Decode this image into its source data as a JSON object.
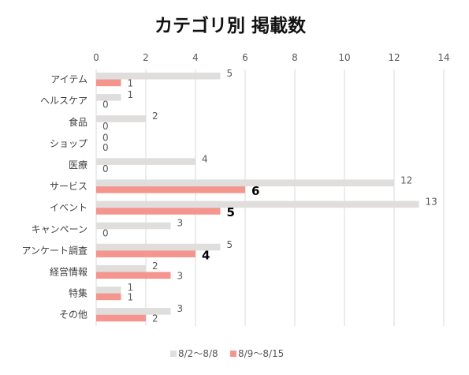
{
  "chart_data": {
    "type": "bar",
    "orientation": "horizontal",
    "title": "カテゴリ別 掲載数",
    "categories": [
      "アイテム",
      "ヘルスケア",
      "食品",
      "ショップ",
      "医療",
      "サービス",
      "イベント",
      "キャンペーン",
      "アンケート調査",
      "経営情報",
      "特集",
      "その他"
    ],
    "series": [
      {
        "name": "8/2〜8/8",
        "color": "#e0dedd",
        "values": [
          5,
          1,
          2,
          0,
          4,
          12,
          13,
          3,
          5,
          2,
          1,
          3
        ]
      },
      {
        "name": "8/9〜8/15",
        "color": "#f4968e",
        "values": [
          1,
          0,
          0,
          0,
          0,
          6,
          5,
          0,
          4,
          3,
          1,
          2
        ]
      }
    ],
    "highlighted_labels": {
      "series": 1,
      "categories": [
        5,
        6,
        8
      ]
    },
    "xlim": [
      0,
      14
    ],
    "xticks": [
      0,
      2,
      4,
      6,
      8,
      10,
      12,
      14
    ],
    "axis_position": "top",
    "grid": true,
    "legend_position": "bottom"
  }
}
